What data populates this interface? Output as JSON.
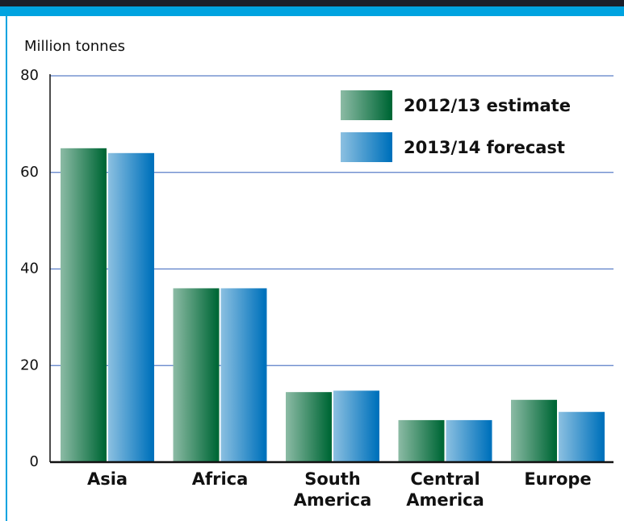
{
  "chart_data": {
    "type": "bar",
    "y_label": "Million tonnes",
    "categories": [
      "Asia",
      "Africa",
      "South America",
      "Central America",
      "Europe"
    ],
    "series": [
      {
        "name": "2012/13 estimate",
        "color": "#006837",
        "values": [
          65,
          36,
          14.5,
          8.7,
          12.9
        ]
      },
      {
        "name": "2013/14 forecast",
        "color": "#0072bc",
        "values": [
          64,
          36,
          14.8,
          8.7,
          10.4
        ]
      }
    ],
    "ylim": [
      0,
      80
    ],
    "yticks": [
      0,
      20,
      40,
      60,
      80
    ],
    "grid": true,
    "legend": "top-right"
  }
}
